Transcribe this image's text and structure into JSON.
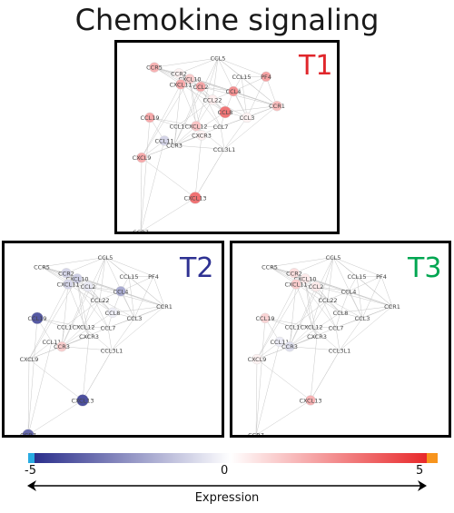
{
  "title": "Chemokine signaling",
  "colors": {
    "blue": "#2b2f8c",
    "white": "#ffffff",
    "red": "#e8292b",
    "cyan": "#29abe2",
    "orange": "#f7941d",
    "t1": "#e0262b",
    "t2": "#2e3192",
    "t3": "#00a651"
  },
  "panels": [
    {
      "id": "T1",
      "label": "T1",
      "labelColor": "#e0262b",
      "expression": {
        "CCR5": 1.8,
        "CXCL10": 1.2,
        "CXCL11": 2.0,
        "CCL2": 2.1,
        "PF4": 2.2,
        "CCL4": 2.6,
        "CCL8": 3.2,
        "CCL19": 2.0,
        "CXCL12": 1.4,
        "CCL11": -1.0,
        "CXCR3": 0.3,
        "CXCL9": 2.0,
        "CXCL13": 3.3,
        "CCL3": 0.3,
        "CCL22": 0.4,
        "CCR1": 1.6,
        "CCR2": 0.3
      }
    },
    {
      "id": "T2",
      "label": "T2",
      "labelColor": "#2e3192",
      "expression": {
        "CCR5": 0,
        "CCR2": -1.0,
        "CXCL10": -1.2,
        "CXCL11": -1.0,
        "CCL2": -0.5,
        "CCL4": -2.0,
        "CCL8": -0.4,
        "CCL19": -4.0,
        "CCR3": 1.2,
        "CXCL13": -4.2,
        "CCR7": -3.6,
        "CCL15": 0,
        "CCR1": 0
      }
    },
    {
      "id": "T3",
      "label": "T3",
      "labelColor": "#00a651",
      "expression": {
        "CCR2": 0.8,
        "CXCL10": 0.5,
        "CXCL11": 1.2,
        "CCL2": 0.5,
        "CCL19": 1.0,
        "CCL11": -0.5,
        "CCR3": -0.8,
        "CXCL13": 1.8,
        "CXCL9": 0.3
      }
    }
  ],
  "scale": {
    "min_label": "-5",
    "mid_label": "0",
    "max_label": "5",
    "axis_label": "Expression"
  }
}
